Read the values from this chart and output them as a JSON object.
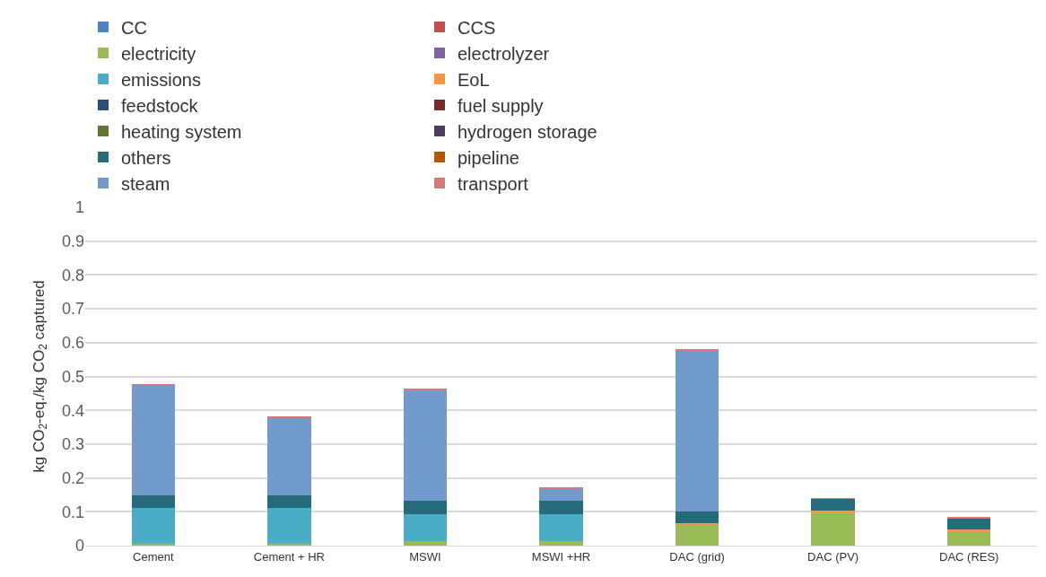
{
  "chart_data": {
    "type": "bar",
    "stacked": true,
    "ylabel": "kg CO$_{2}$-eq./kg CO$_{2}$ captured",
    "categories": [
      "Cement",
      "Cement + HR",
      "MSWI",
      "MSWI +HR",
      "DAC (grid)",
      "DAC (PV)",
      "DAC (RES)"
    ],
    "series": [
      {
        "name": "CC",
        "color": "#4f81bd",
        "values": [
          0,
          0,
          0,
          0,
          0,
          0,
          0
        ]
      },
      {
        "name": "CCS",
        "color": "#c0504d",
        "values": [
          0,
          0,
          0,
          0,
          0,
          0,
          0
        ]
      },
      {
        "name": "electricity",
        "color": "#9bbb59",
        "values": [
          0.005,
          0.005,
          0.012,
          0.012,
          0.061,
          0.098,
          0.041
        ]
      },
      {
        "name": "electrolyzer",
        "color": "#8064a2",
        "values": [
          0,
          0,
          0,
          0,
          0,
          0,
          0
        ]
      },
      {
        "name": "emissions",
        "color": "#4bacc6",
        "values": [
          0.106,
          0.106,
          0.082,
          0.082,
          0,
          0,
          0
        ]
      },
      {
        "name": "EoL",
        "color": "#f79646",
        "values": [
          0,
          0,
          0,
          0,
          0.006,
          0.005,
          0.006
        ]
      },
      {
        "name": "feedstock",
        "color": "#2c4d75",
        "values": [
          0,
          0,
          0,
          0,
          0,
          0,
          0
        ]
      },
      {
        "name": "fuel supply",
        "color": "#772c2a",
        "values": [
          0,
          0,
          0,
          0,
          0,
          0,
          0
        ]
      },
      {
        "name": "heating system",
        "color": "#5f7530",
        "values": [
          0,
          0,
          0,
          0,
          0,
          0,
          0
        ]
      },
      {
        "name": "hydrogen storage",
        "color": "#4d3b62",
        "values": [
          0,
          0,
          0,
          0,
          0,
          0,
          0
        ]
      },
      {
        "name": "others",
        "color": "#276a7c",
        "values": [
          0.037,
          0.037,
          0.039,
          0.039,
          0.034,
          0.035,
          0.034
        ]
      },
      {
        "name": "pipeline",
        "color": "#b65708",
        "values": [
          0,
          0,
          0,
          0,
          0,
          0,
          0
        ]
      },
      {
        "name": "steam",
        "color": "#729aca",
        "values": [
          0.327,
          0.23,
          0.327,
          0.035,
          0.476,
          0,
          0
        ]
      },
      {
        "name": "transport",
        "color": "#d37a7a",
        "values": [
          0.002,
          0.002,
          0.002,
          0.002,
          0.002,
          0.002,
          0.002
        ]
      }
    ],
    "ylim": [
      0,
      1
    ],
    "yticks": [
      0,
      0.1,
      0.2,
      0.3,
      0.4,
      0.5,
      0.6,
      0.7,
      0.8,
      0.9,
      1
    ],
    "grid": "y",
    "legend": "top"
  }
}
